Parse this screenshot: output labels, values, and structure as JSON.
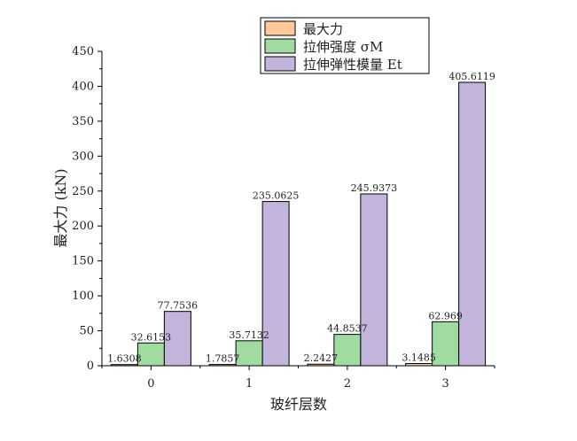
{
  "chart_data": {
    "type": "bar",
    "title": "",
    "xlabel": "玻纤层数",
    "ylabel": "最大力 (kN)",
    "categories": [
      "0",
      "1",
      "2",
      "3"
    ],
    "ylim": [
      0,
      450
    ],
    "yticks": [
      0,
      50,
      100,
      150,
      200,
      250,
      300,
      350,
      400,
      450
    ],
    "legend_position": "top-center",
    "grid": false,
    "series": [
      {
        "name": "最大力",
        "color": "#ffc896",
        "values": [
          1.6308,
          1.7857,
          2.2427,
          3.1485
        ],
        "labels": [
          "1.6308",
          "1.7857",
          "2.2427",
          "3.1485"
        ]
      },
      {
        "name": "拉伸强度 σM",
        "color": "#a0dca0",
        "values": [
          32.6153,
          35.7132,
          44.8537,
          62.969
        ],
        "labels": [
          "32.6153",
          "35.7132",
          "44.8537",
          "62.969"
        ]
      },
      {
        "name": "拉伸弹性模量 Et",
        "color": "#c3b4dc",
        "values": [
          77.7536,
          235.0625,
          245.9373,
          405.6119
        ],
        "labels": [
          "77.7536",
          "235.0625",
          "245.9373",
          "405.6119"
        ]
      }
    ]
  }
}
